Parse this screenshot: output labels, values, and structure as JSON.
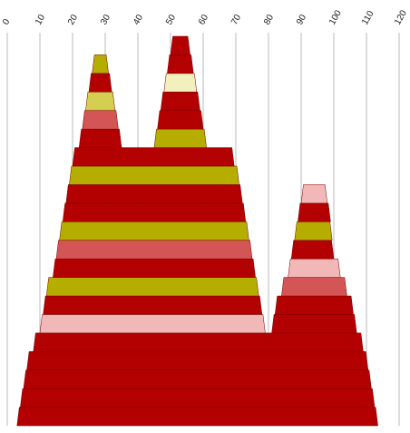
{
  "chart_data": {
    "type": "floating-bar",
    "xlim": [
      0,
      120
    ],
    "xticks": [
      0,
      10,
      20,
      30,
      40,
      50,
      60,
      70,
      80,
      90,
      100,
      110,
      120
    ],
    "grid": true,
    "levels": [
      {
        "segments": [
          {
            "start": 3,
            "end": 113.5,
            "color": "#b30000"
          }
        ]
      },
      {
        "segments": [
          {
            "start": 4,
            "end": 112.5,
            "color": "#b30000"
          }
        ]
      },
      {
        "segments": [
          {
            "start": 5,
            "end": 111.5,
            "color": "#b30000"
          }
        ]
      },
      {
        "segments": [
          {
            "start": 6,
            "end": 110.5,
            "color": "#b30000"
          }
        ]
      },
      {
        "segments": [
          {
            "start": 8,
            "end": 109,
            "color": "#b30000"
          }
        ]
      },
      {
        "segments": [
          {
            "start": 10,
            "end": 79,
            "color": "#f2b8b8"
          },
          {
            "start": 81,
            "end": 107,
            "color": "#b30000"
          }
        ]
      },
      {
        "segments": [
          {
            "start": 11,
            "end": 78,
            "color": "#b30000"
          },
          {
            "start": 82,
            "end": 106,
            "color": "#b30000"
          }
        ]
      },
      {
        "segments": [
          {
            "start": 12,
            "end": 77,
            "color": "#b5ad00"
          },
          {
            "start": 84,
            "end": 104,
            "color": "#d35555"
          }
        ]
      },
      {
        "segments": [
          {
            "start": 14,
            "end": 76,
            "color": "#b30000"
          },
          {
            "start": 86,
            "end": 102,
            "color": "#f2b8b8"
          }
        ]
      },
      {
        "segments": [
          {
            "start": 15,
            "end": 75,
            "color": "#d35555"
          },
          {
            "start": 87,
            "end": 100,
            "color": "#b30000"
          }
        ]
      },
      {
        "segments": [
          {
            "start": 16,
            "end": 74,
            "color": "#b5ad00"
          },
          {
            "start": 88,
            "end": 99.5,
            "color": "#b5ad00"
          }
        ]
      },
      {
        "segments": [
          {
            "start": 17,
            "end": 73,
            "color": "#b30000"
          },
          {
            "start": 89,
            "end": 99,
            "color": "#b30000"
          }
        ]
      },
      {
        "segments": [
          {
            "start": 18,
            "end": 72,
            "color": "#b30000"
          },
          {
            "start": 90,
            "end": 98,
            "color": "#f2b8b8"
          }
        ]
      },
      {
        "segments": [
          {
            "start": 19,
            "end": 71,
            "color": "#b5ad00"
          }
        ]
      },
      {
        "segments": [
          {
            "start": 20,
            "end": 69.5,
            "color": "#b30000"
          }
        ]
      },
      {
        "segments": [
          {
            "start": 22,
            "end": 35,
            "color": "#b30000"
          },
          {
            "start": 45,
            "end": 61,
            "color": "#b5ad00"
          }
        ]
      },
      {
        "segments": [
          {
            "start": 23,
            "end": 34,
            "color": "#d35555"
          },
          {
            "start": 46,
            "end": 60,
            "color": "#b30000"
          }
        ]
      },
      {
        "segments": [
          {
            "start": 24,
            "end": 33,
            "color": "#d4cf50"
          },
          {
            "start": 47,
            "end": 59,
            "color": "#b30000"
          }
        ]
      },
      {
        "segments": [
          {
            "start": 25,
            "end": 32,
            "color": "#b30000"
          },
          {
            "start": 48,
            "end": 58,
            "color": "#f3f0c0"
          }
        ]
      },
      {
        "segments": [
          {
            "start": 26,
            "end": 31,
            "color": "#b5ad00"
          },
          {
            "start": 49,
            "end": 57,
            "color": "#b30000"
          }
        ]
      },
      {
        "segments": [
          {
            "start": 50,
            "end": 56,
            "color": "#b30000"
          }
        ]
      }
    ]
  }
}
